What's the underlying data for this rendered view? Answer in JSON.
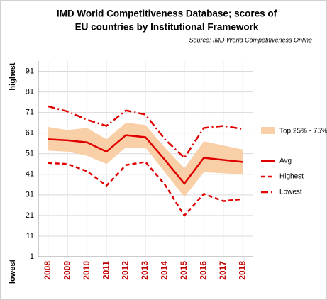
{
  "chart_data": {
    "type": "line",
    "title": [
      "IMD World Competitiveness Database; scores of",
      "EU countries by Institutional Framework"
    ],
    "source": "Source: IMD World Competitiveness Online",
    "y_top_label": "highest",
    "y_bottom_label": "lowest",
    "categories": [
      "2008",
      "2009",
      "2010",
      "2011",
      "2012",
      "2013",
      "2014",
      "2015",
      "2016",
      "2017",
      "2018"
    ],
    "ylim": [
      1,
      96
    ],
    "yticks": [
      1,
      11,
      21,
      31,
      41,
      51,
      61,
      71,
      81,
      91
    ],
    "grid": true,
    "band": {
      "name": "Top 25% - 75%",
      "color": "#f9cfa8",
      "high": [
        64,
        62.5,
        63.5,
        58,
        66,
        65,
        54,
        44,
        57,
        55,
        53
      ],
      "low": [
        52.5,
        52,
        50,
        46,
        54,
        54,
        42,
        30,
        42,
        41.5,
        41
      ]
    },
    "series": [
      {
        "name": "Avg",
        "color": "#e00000",
        "style": "solid",
        "values": [
          58,
          57.5,
          56.5,
          52,
          60,
          59,
          48,
          36.5,
          49,
          48,
          47
        ]
      },
      {
        "name": "Highest",
        "color": "#e00000",
        "style": "dashed",
        "values": [
          46.5,
          46,
          42.5,
          35.5,
          45.5,
          47,
          36,
          21,
          31.5,
          28,
          29
        ]
      },
      {
        "name": "Lowest",
        "color": "#e00000",
        "style": "dashdot",
        "values": [
          74,
          71.5,
          67.5,
          64.5,
          72,
          70,
          58,
          49,
          63.5,
          64.5,
          63
        ]
      }
    ]
  }
}
